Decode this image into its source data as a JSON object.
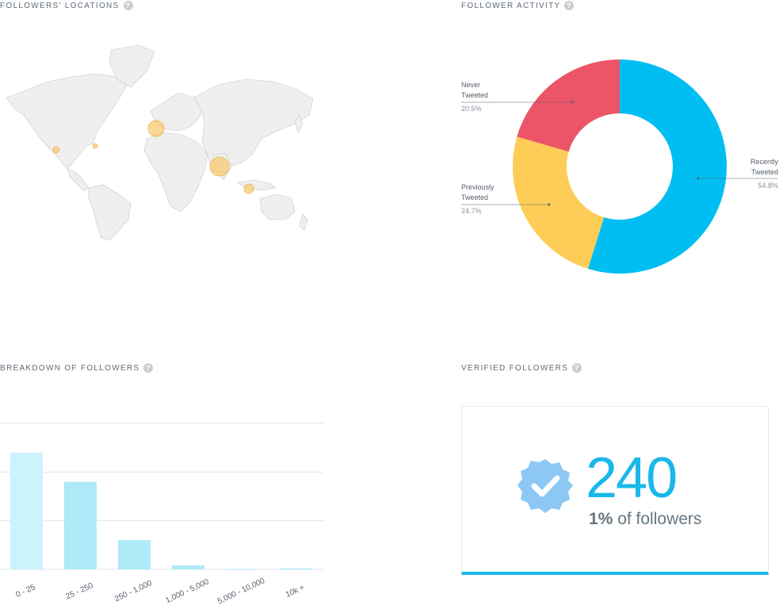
{
  "sections": {
    "locations": {
      "title": "FOLLOWERS' LOCATIONS"
    },
    "activity": {
      "title": "FOLLOWER ACTIVITY"
    },
    "breakdown": {
      "title": "BREAKDOWN OF FOLLOWERS"
    },
    "verified": {
      "title": "VERIFIED FOLLOWERS"
    }
  },
  "help_glyph": "?",
  "colors": {
    "recently": "#00bef2",
    "previously": "#fecd57",
    "never": "#ec5467",
    "bar": "#aeeaf8",
    "accent": "#1ab7ea",
    "map_land": "#efefef",
    "map_border": "#c8c8c8",
    "bubble": "#f9c76b"
  },
  "chart_data": [
    {
      "type": "pie",
      "title": "FOLLOWER ACTIVITY",
      "donut": true,
      "slices": [
        {
          "name": "Recently Tweeted",
          "value": 54.8,
          "label": "54.8%"
        },
        {
          "name": "Previously Tweeted",
          "value": 24.7,
          "label": "24.7%"
        },
        {
          "name": "Never Tweeted",
          "value": 20.5,
          "label": "20.5%"
        }
      ]
    },
    {
      "type": "bar",
      "title": "BREAKDOWN OF FOLLOWERS",
      "categories": [
        "0 - 25",
        "25 - 250",
        "250 - 1,000",
        "1,000 - 5,000",
        "5,000 - 10,000",
        "10k +"
      ],
      "values": [
        24,
        18,
        6,
        0.8,
        0.1,
        0.2
      ],
      "ylim": [
        0,
        30
      ],
      "grid": true
    }
  ],
  "map": {
    "icon": "world-map",
    "bubbles": [
      {
        "region": "western-europe",
        "size": 2
      },
      {
        "region": "south-asia",
        "size": 3
      },
      {
        "region": "southeast-asia",
        "size": 1
      },
      {
        "region": "us-west",
        "size": 1
      },
      {
        "region": "us-east",
        "size": 0.5
      }
    ]
  },
  "verified": {
    "count": "240",
    "percent": "1%",
    "suffix": " of followers",
    "icon": "verified-badge-icon"
  }
}
